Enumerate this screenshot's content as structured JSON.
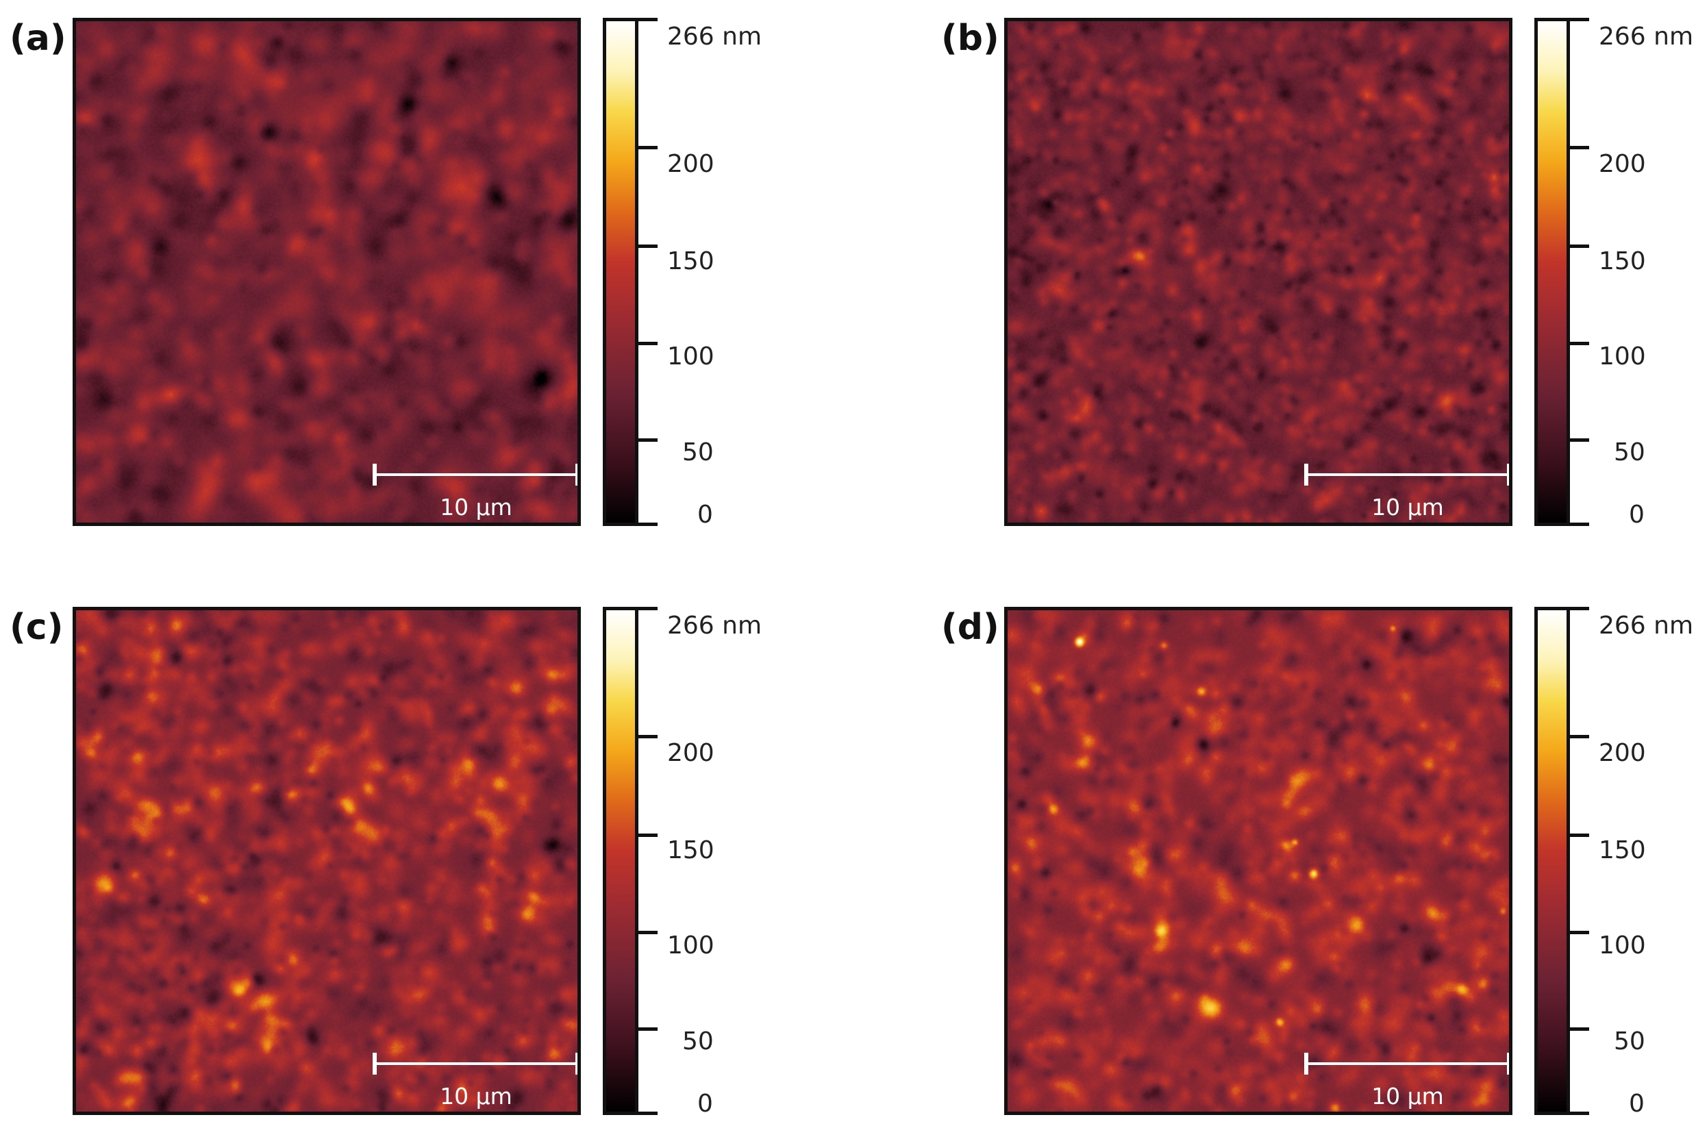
{
  "panels": [
    {
      "label": "(a)",
      "scale_bar": "10 µm",
      "tone": "dark-smooth",
      "colorbar": {
        "max": "266 nm",
        "ticks": [
          "200",
          "150",
          "100",
          "50",
          "0"
        ]
      }
    },
    {
      "label": "(b)",
      "scale_bar": "10 µm",
      "tone": "grainy",
      "colorbar": {
        "max": "266 nm",
        "ticks": [
          "200",
          "150",
          "100",
          "50",
          "0"
        ]
      }
    },
    {
      "label": "(c)",
      "scale_bar": "10 µm",
      "tone": "grainy-bright",
      "colorbar": {
        "max": "266 nm",
        "ticks": [
          "200",
          "150",
          "100",
          "50",
          "0"
        ]
      }
    },
    {
      "label": "(d)",
      "scale_bar": "10 µm",
      "tone": "bright-spots",
      "colorbar": {
        "max": "266 nm",
        "ticks": [
          "200",
          "150",
          "100",
          "50",
          "0"
        ]
      }
    }
  ],
  "colors": {
    "dark": "#000000",
    "low": "#5a1f2e",
    "mid": "#c2342a",
    "high": "#f4a81a",
    "max": "#ffffff"
  }
}
